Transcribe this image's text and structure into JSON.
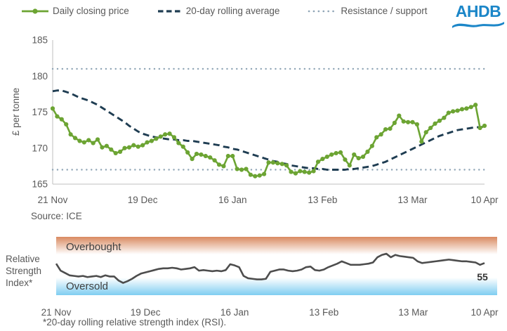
{
  "legend": {
    "items": [
      "Daily closing price",
      "20-day rolling average",
      "Resistance / support"
    ]
  },
  "logo": {
    "text": "AHDB",
    "color": "#1B86C8"
  },
  "footnote": "*20-day rolling relative strength index (RSI).",
  "chart_data": [
    {
      "type": "line",
      "name": "price-chart",
      "title": "",
      "ylabel": "£ per tonne",
      "ylim": [
        165,
        185
      ],
      "yticks": [
        165,
        170,
        175,
        180,
        185
      ],
      "x_tick_labels": [
        "21 Nov",
        "19 Dec",
        "16 Jan",
        "13 Feb",
        "13 Mar",
        "10 Apr"
      ],
      "x_frequency": "daily trading days, 21 Nov to 10 Apr",
      "source": "Source: ICE",
      "grid": false,
      "series": [
        {
          "name": "Daily closing price",
          "color": "#6CA433",
          "style": "solid_with_markers",
          "values": [
            175.5,
            174.4,
            174.0,
            173.3,
            171.9,
            171.4,
            171.0,
            170.8,
            171.1,
            170.7,
            171.2,
            170.1,
            170.3,
            169.8,
            169.3,
            169.5,
            170.0,
            170.1,
            170.4,
            170.2,
            170.4,
            170.8,
            171.0,
            171.3,
            171.6,
            171.9,
            172.0,
            171.5,
            170.7,
            170.2,
            169.4,
            168.5,
            169.2,
            169.1,
            168.9,
            168.7,
            168.3,
            167.7,
            167.5,
            168.9,
            168.9,
            167.1,
            167.0,
            167.1,
            166.3,
            166.1,
            166.2,
            166.4,
            168.0,
            168.0,
            167.9,
            167.8,
            167.6,
            166.7,
            166.5,
            166.8,
            166.7,
            166.6,
            166.8,
            168.1,
            168.5,
            168.8,
            169.1,
            169.3,
            169.4,
            168.4,
            167.6,
            169.1,
            168.6,
            168.8,
            169.5,
            170.3,
            171.5,
            171.9,
            172.6,
            172.7,
            173.5,
            174.5,
            173.7,
            173.6,
            173.6,
            173.3,
            170.9,
            172.2,
            172.8,
            173.4,
            173.8,
            174.2,
            174.9,
            175.1,
            175.2,
            175.4,
            175.5,
            175.7,
            176.0,
            172.8,
            173.1
          ]
        },
        {
          "name": "20-day rolling average",
          "color": "#1F3D52",
          "style": "dashed",
          "values": [
            177.9,
            178.0,
            178.0,
            177.8,
            177.6,
            177.3,
            177.0,
            176.8,
            176.6,
            176.3,
            176.0,
            175.6,
            175.2,
            174.8,
            174.4,
            174.0,
            173.6,
            173.1,
            172.7,
            172.3,
            172.0,
            171.8,
            171.6,
            171.5,
            171.4,
            171.3,
            171.2,
            171.2,
            171.1,
            171.1,
            171.0,
            171.0,
            170.9,
            170.8,
            170.7,
            170.6,
            170.5,
            170.4,
            170.2,
            170.1,
            169.9,
            169.8,
            169.6,
            169.4,
            169.2,
            169.0,
            168.8,
            168.6,
            168.4,
            168.2,
            168.1,
            167.9,
            167.8,
            167.6,
            167.5,
            167.4,
            167.3,
            167.2,
            167.2,
            167.1,
            167.1,
            167.0,
            167.0,
            167.0,
            167.0,
            167.0,
            167.1,
            167.1,
            167.2,
            167.3,
            167.4,
            167.5,
            167.7,
            167.9,
            168.1,
            168.4,
            168.7,
            169.0,
            169.3,
            169.6,
            169.9,
            170.2,
            170.5,
            170.8,
            171.1,
            171.4,
            171.7,
            171.9,
            172.1,
            172.3,
            172.5,
            172.6,
            172.7,
            172.8,
            172.9,
            172.9,
            173.0
          ]
        },
        {
          "name": "Resistance",
          "color": "#8FA5B6",
          "style": "dotted",
          "value": 181
        },
        {
          "name": "Support",
          "color": "#8FA5B6",
          "style": "dotted",
          "value": 167
        }
      ]
    },
    {
      "type": "line",
      "name": "rsi-chart",
      "label_lines": [
        "Relative",
        "Strength",
        "Index*"
      ],
      "ylim": [
        0,
        100
      ],
      "x_tick_labels": [
        "21 Nov",
        "19 Dec",
        "16 Jan",
        "13 Feb",
        "13 Mar",
        "10 Apr"
      ],
      "bands": [
        {
          "label": "Overbought",
          "range": [
            70,
            100
          ],
          "color_top": "#D98A61",
          "color_bottom": "#FFFFFF"
        },
        {
          "label": "Oversold",
          "range": [
            0,
            30
          ],
          "color_top": "#FFFFFF",
          "color_bottom": "#7FCDF1"
        }
      ],
      "last_value_label": "55",
      "series": [
        {
          "name": "20-day rolling RSI",
          "color": "#4D4D4D",
          "style": "solid",
          "values": [
            54,
            42,
            38,
            34,
            33,
            32,
            33,
            31,
            32,
            33,
            31,
            34,
            32,
            32,
            25,
            21,
            24,
            28,
            33,
            37,
            39,
            41,
            43,
            45,
            46,
            46,
            47,
            46,
            44,
            45,
            46,
            48,
            42,
            43,
            42,
            41,
            42,
            41,
            43,
            53,
            51,
            48,
            33,
            29,
            28,
            27,
            27,
            28,
            40,
            42,
            44,
            44,
            42,
            41,
            42,
            44,
            48,
            49,
            43,
            42,
            44,
            48,
            51,
            54,
            58,
            55,
            52,
            52,
            52,
            53,
            54,
            56,
            65,
            69,
            71,
            65,
            69,
            67,
            66,
            65,
            64,
            58,
            55,
            56,
            57,
            58,
            59,
            60,
            61,
            60,
            59,
            58,
            58,
            57,
            56,
            52,
            55
          ]
        }
      ]
    }
  ]
}
